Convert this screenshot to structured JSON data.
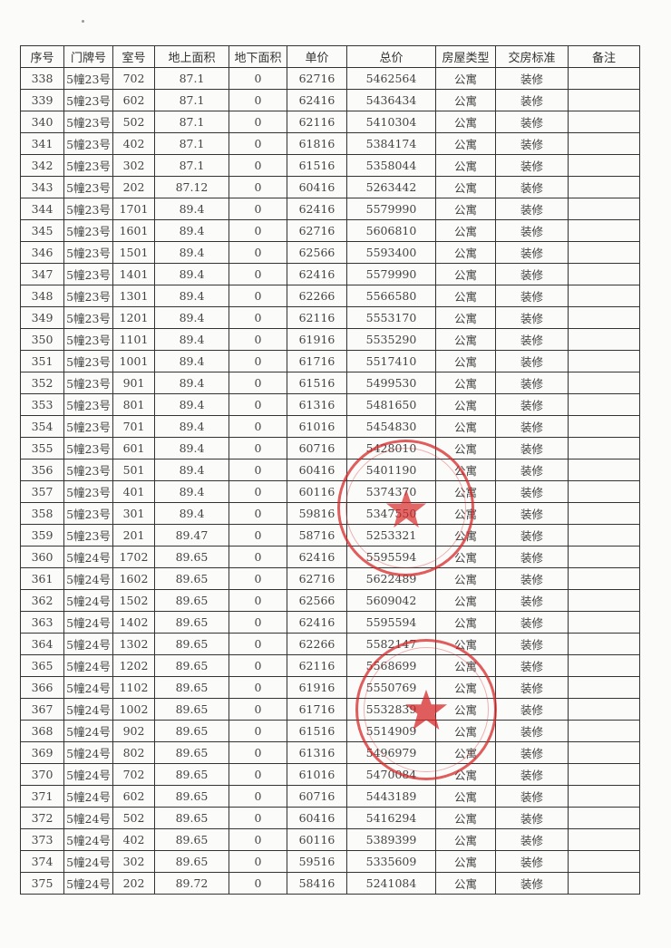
{
  "table": {
    "headers": [
      "序号",
      "门牌号",
      "室号",
      "地上面积",
      "地下面积",
      "单价",
      "总价",
      "房屋类型",
      "交房标准",
      "备注"
    ],
    "rows": [
      [
        "338",
        "5幢23号",
        "702",
        "87.1",
        "0",
        "62716",
        "5462564",
        "公寓",
        "装修",
        ""
      ],
      [
        "339",
        "5幢23号",
        "602",
        "87.1",
        "0",
        "62416",
        "5436434",
        "公寓",
        "装修",
        ""
      ],
      [
        "340",
        "5幢23号",
        "502",
        "87.1",
        "0",
        "62116",
        "5410304",
        "公寓",
        "装修",
        ""
      ],
      [
        "341",
        "5幢23号",
        "402",
        "87.1",
        "0",
        "61816",
        "5384174",
        "公寓",
        "装修",
        ""
      ],
      [
        "342",
        "5幢23号",
        "302",
        "87.1",
        "0",
        "61516",
        "5358044",
        "公寓",
        "装修",
        ""
      ],
      [
        "343",
        "5幢23号",
        "202",
        "87.12",
        "0",
        "60416",
        "5263442",
        "公寓",
        "装修",
        ""
      ],
      [
        "344",
        "5幢23号",
        "1701",
        "89.4",
        "0",
        "62416",
        "5579990",
        "公寓",
        "装修",
        ""
      ],
      [
        "345",
        "5幢23号",
        "1601",
        "89.4",
        "0",
        "62716",
        "5606810",
        "公寓",
        "装修",
        ""
      ],
      [
        "346",
        "5幢23号",
        "1501",
        "89.4",
        "0",
        "62566",
        "5593400",
        "公寓",
        "装修",
        ""
      ],
      [
        "347",
        "5幢23号",
        "1401",
        "89.4",
        "0",
        "62416",
        "5579990",
        "公寓",
        "装修",
        ""
      ],
      [
        "348",
        "5幢23号",
        "1301",
        "89.4",
        "0",
        "62266",
        "5566580",
        "公寓",
        "装修",
        ""
      ],
      [
        "349",
        "5幢23号",
        "1201",
        "89.4",
        "0",
        "62116",
        "5553170",
        "公寓",
        "装修",
        ""
      ],
      [
        "350",
        "5幢23号",
        "1101",
        "89.4",
        "0",
        "61916",
        "5535290",
        "公寓",
        "装修",
        ""
      ],
      [
        "351",
        "5幢23号",
        "1001",
        "89.4",
        "0",
        "61716",
        "5517410",
        "公寓",
        "装修",
        ""
      ],
      [
        "352",
        "5幢23号",
        "901",
        "89.4",
        "0",
        "61516",
        "5499530",
        "公寓",
        "装修",
        ""
      ],
      [
        "353",
        "5幢23号",
        "801",
        "89.4",
        "0",
        "61316",
        "5481650",
        "公寓",
        "装修",
        ""
      ],
      [
        "354",
        "5幢23号",
        "701",
        "89.4",
        "0",
        "61016",
        "5454830",
        "公寓",
        "装修",
        ""
      ],
      [
        "355",
        "5幢23号",
        "601",
        "89.4",
        "0",
        "60716",
        "5428010",
        "公寓",
        "装修",
        ""
      ],
      [
        "356",
        "5幢23号",
        "501",
        "89.4",
        "0",
        "60416",
        "5401190",
        "公寓",
        "装修",
        ""
      ],
      [
        "357",
        "5幢23号",
        "401",
        "89.4",
        "0",
        "60116",
        "5374370",
        "公寓",
        "装修",
        ""
      ],
      [
        "358",
        "5幢23号",
        "301",
        "89.4",
        "0",
        "59816",
        "5347550",
        "公寓",
        "装修",
        ""
      ],
      [
        "359",
        "5幢23号",
        "201",
        "89.47",
        "0",
        "58716",
        "5253321",
        "公寓",
        "装修",
        ""
      ],
      [
        "360",
        "5幢24号",
        "1702",
        "89.65",
        "0",
        "62416",
        "5595594",
        "公寓",
        "装修",
        ""
      ],
      [
        "361",
        "5幢24号",
        "1602",
        "89.65",
        "0",
        "62716",
        "5622489",
        "公寓",
        "装修",
        ""
      ],
      [
        "362",
        "5幢24号",
        "1502",
        "89.65",
        "0",
        "62566",
        "5609042",
        "公寓",
        "装修",
        ""
      ],
      [
        "363",
        "5幢24号",
        "1402",
        "89.65",
        "0",
        "62416",
        "5595594",
        "公寓",
        "装修",
        ""
      ],
      [
        "364",
        "5幢24号",
        "1302",
        "89.65",
        "0",
        "62266",
        "5582147",
        "公寓",
        "装修",
        ""
      ],
      [
        "365",
        "5幢24号",
        "1202",
        "89.65",
        "0",
        "62116",
        "5568699",
        "公寓",
        "装修",
        ""
      ],
      [
        "366",
        "5幢24号",
        "1102",
        "89.65",
        "0",
        "61916",
        "5550769",
        "公寓",
        "装修",
        ""
      ],
      [
        "367",
        "5幢24号",
        "1002",
        "89.65",
        "0",
        "61716",
        "5532839",
        "公寓",
        "装修",
        ""
      ],
      [
        "368",
        "5幢24号",
        "902",
        "89.65",
        "0",
        "61516",
        "5514909",
        "公寓",
        "装修",
        ""
      ],
      [
        "369",
        "5幢24号",
        "802",
        "89.65",
        "0",
        "61316",
        "5496979",
        "公寓",
        "装修",
        ""
      ],
      [
        "370",
        "5幢24号",
        "702",
        "89.65",
        "0",
        "61016",
        "5470084",
        "公寓",
        "装修",
        ""
      ],
      [
        "371",
        "5幢24号",
        "602",
        "89.65",
        "0",
        "60716",
        "5443189",
        "公寓",
        "装修",
        ""
      ],
      [
        "372",
        "5幢24号",
        "502",
        "89.65",
        "0",
        "60416",
        "5416294",
        "公寓",
        "装修",
        ""
      ],
      [
        "373",
        "5幢24号",
        "402",
        "89.65",
        "0",
        "60116",
        "5389399",
        "公寓",
        "装修",
        ""
      ],
      [
        "374",
        "5幢24号",
        "302",
        "89.65",
        "0",
        "59516",
        "5335609",
        "公寓",
        "装修",
        ""
      ],
      [
        "375",
        "5幢24号",
        "202",
        "89.72",
        "0",
        "58416",
        "5241084",
        "公寓",
        "装修",
        ""
      ]
    ]
  },
  "stamps": {
    "color": "#d72828"
  }
}
